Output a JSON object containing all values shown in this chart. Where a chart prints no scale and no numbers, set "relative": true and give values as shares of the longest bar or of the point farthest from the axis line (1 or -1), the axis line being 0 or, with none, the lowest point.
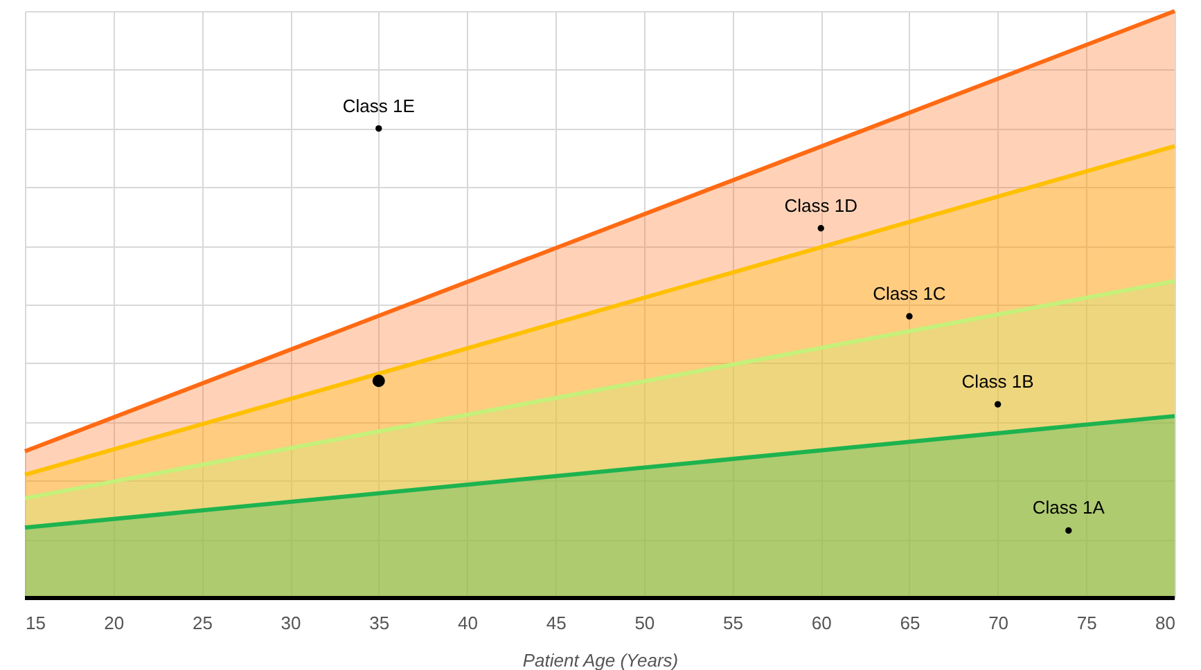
{
  "chart_data": {
    "type": "area",
    "xlabel": "Patient Age (Years)",
    "relative": true,
    "xlim": [
      15,
      80
    ],
    "xticks": [
      15,
      20,
      25,
      30,
      35,
      40,
      45,
      50,
      55,
      60,
      65,
      70,
      75,
      80
    ],
    "grid": true,
    "series": [
      {
        "color": "#ff6a13",
        "x": [
          15,
          80
        ],
        "values": [
          0.25,
          1
        ]
      },
      {
        "color": "#ffc000",
        "x": [
          15,
          80
        ],
        "values": [
          0.21,
          0.77
        ]
      },
      {
        "color": "#c5f07a",
        "x": [
          15,
          80
        ],
        "values": [
          0.17,
          0.54
        ]
      },
      {
        "color": "#1db34f",
        "x": [
          15,
          80
        ],
        "values": [
          0.12,
          0.31
        ]
      },
      {
        "type": "scatter",
        "color": "#000000",
        "marker": "circle",
        "x": [
          35
        ],
        "values": [
          0.37
        ]
      }
    ],
    "annotations": [
      {
        "text": "Class 1E",
        "x": 35,
        "y": 0.8
      },
      {
        "text": "Class 1D",
        "x": 60,
        "y": 0.63
      },
      {
        "text": "Class 1C",
        "x": 65,
        "y": 0.48
      },
      {
        "text": "Class 1B",
        "x": 70,
        "y": 0.33
      },
      {
        "text": "Class 1A",
        "x": 74,
        "y": 0.115
      }
    ]
  }
}
